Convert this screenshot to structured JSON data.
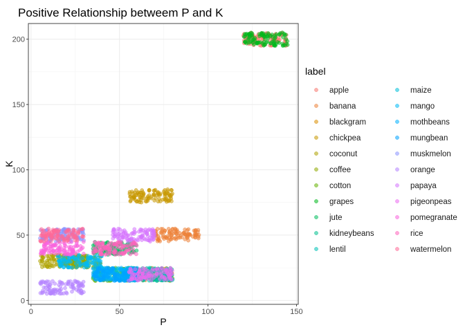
{
  "chart_data": {
    "type": "scatter",
    "title": "Positive Relationship betweem P and K",
    "xlabel": "P",
    "ylabel": "K",
    "xlim": [
      -1.5,
      151
    ],
    "ylim": [
      -3,
      212
    ],
    "x_ticks": [
      0,
      50,
      100,
      150
    ],
    "y_ticks": [
      0,
      50,
      100,
      150,
      200
    ],
    "grid": true,
    "legend": {
      "title": "label",
      "placement": "right",
      "columns": 2
    },
    "series": [
      {
        "name": "apple",
        "color": "#F8766D",
        "p_range": [
          120,
          145
        ],
        "k_range": [
          195,
          205
        ],
        "n": 100
      },
      {
        "name": "banana",
        "color": "#EC8239",
        "p_range": [
          70,
          95
        ],
        "k_range": [
          45,
          55
        ],
        "n": 100
      },
      {
        "name": "blackgram",
        "color": "#DB8E00",
        "p_range": [
          55,
          80
        ],
        "k_range": [
          15,
          25
        ],
        "n": 100
      },
      {
        "name": "chickpea",
        "color": "#C79800",
        "p_range": [
          55,
          80
        ],
        "k_range": [
          75,
          85
        ],
        "n": 100
      },
      {
        "name": "coconut",
        "color": "#AEA200",
        "p_range": [
          5,
          30
        ],
        "k_range": [
          25,
          35
        ],
        "n": 100
      },
      {
        "name": "coffee",
        "color": "#8FAA00",
        "p_range": [
          15,
          40
        ],
        "k_range": [
          25,
          35
        ],
        "n": 100
      },
      {
        "name": "cotton",
        "color": "#64B200",
        "p_range": [
          35,
          60
        ],
        "k_range": [
          15,
          25
        ],
        "n": 100
      },
      {
        "name": "grapes",
        "color": "#00B81B",
        "p_range": [
          120,
          145
        ],
        "k_range": [
          195,
          205
        ],
        "n": 100
      },
      {
        "name": "jute",
        "color": "#00BD5C",
        "p_range": [
          35,
          60
        ],
        "k_range": [
          35,
          45
        ],
        "n": 100
      },
      {
        "name": "kidneybeans",
        "color": "#00C08E",
        "p_range": [
          55,
          80
        ],
        "k_range": [
          15,
          25
        ],
        "n": 100
      },
      {
        "name": "lentil",
        "color": "#00C1B7",
        "p_range": [
          55,
          80
        ],
        "k_range": [
          15,
          25
        ],
        "n": 100
      },
      {
        "name": "maize",
        "color": "#00BFD9",
        "p_range": [
          35,
          60
        ],
        "k_range": [
          15,
          25
        ],
        "n": 100
      },
      {
        "name": "mango",
        "color": "#00BAF5",
        "p_range": [
          15,
          40
        ],
        "k_range": [
          25,
          35
        ],
        "n": 100
      },
      {
        "name": "mothbeans",
        "color": "#00B1FF",
        "p_range": [
          35,
          60
        ],
        "k_range": [
          15,
          25
        ],
        "n": 100
      },
      {
        "name": "mungbean",
        "color": "#00A3FF",
        "p_range": [
          35,
          60
        ],
        "k_range": [
          15,
          25
        ],
        "n": 100
      },
      {
        "name": "muskmelon",
        "color": "#8B93FF",
        "p_range": [
          5,
          30
        ],
        "k_range": [
          45,
          55
        ],
        "n": 100
      },
      {
        "name": "orange",
        "color": "#B584FF",
        "p_range": [
          5,
          30
        ],
        "k_range": [
          5,
          15
        ],
        "n": 100
      },
      {
        "name": "papaya",
        "color": "#D575FE",
        "p_range": [
          46,
          70
        ],
        "k_range": [
          45,
          55
        ],
        "n": 100
      },
      {
        "name": "pigeonpeas",
        "color": "#EB69F0",
        "p_range": [
          55,
          80
        ],
        "k_range": [
          15,
          25
        ],
        "n": 100
      },
      {
        "name": "pomegranate",
        "color": "#F962DD",
        "p_range": [
          5,
          30
        ],
        "k_range": [
          35,
          45
        ],
        "n": 100
      },
      {
        "name": "rice",
        "color": "#FF62BC",
        "p_range": [
          35,
          60
        ],
        "k_range": [
          35,
          45
        ],
        "n": 100
      },
      {
        "name": "watermelon",
        "color": "#FF6A98",
        "p_range": [
          5,
          30
        ],
        "k_range": [
          45,
          55
        ],
        "n": 100
      }
    ]
  }
}
